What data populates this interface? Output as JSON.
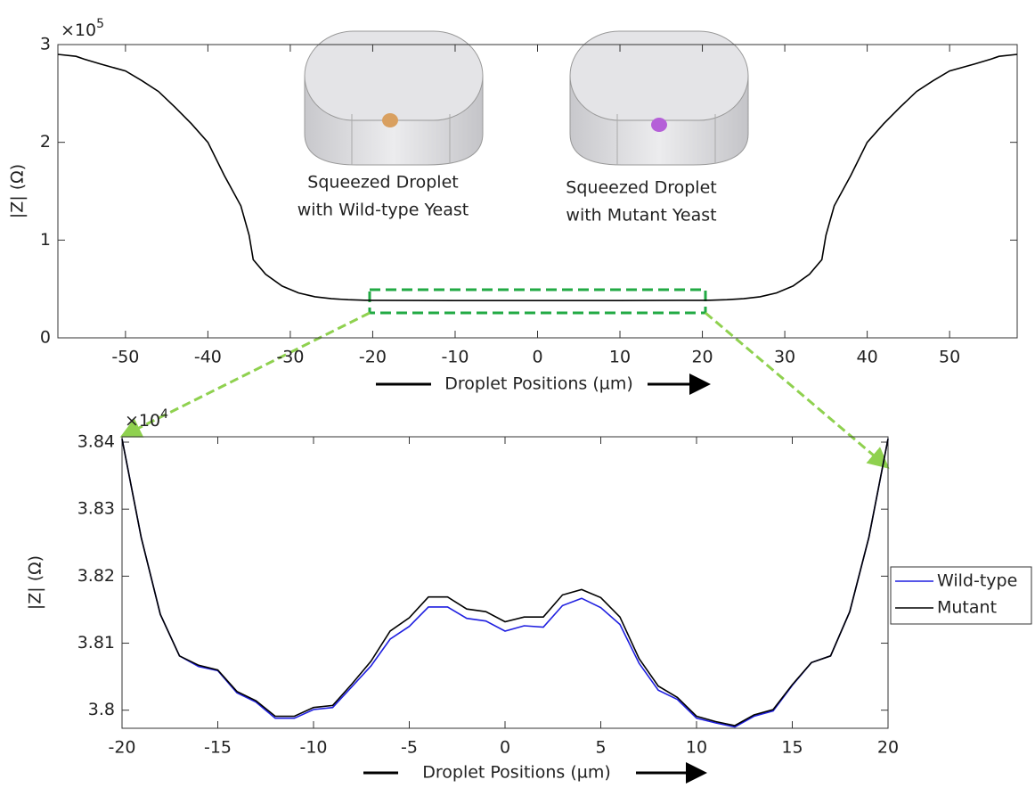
{
  "chart_data": [
    {
      "type": "line",
      "ylabel": "|Z| (Ω)",
      "xlabel": "Droplet Positions (µm)",
      "y_multiplier": "×10",
      "y_exponent": "5",
      "annotations": [
        [
          "Squeezed Droplet",
          "with Wild-type Yeast"
        ],
        [
          "Squeezed Droplet",
          "with Mutant Yeast"
        ]
      ],
      "xlim": [
        -58.2,
        58.2
      ],
      "ylim": [
        0,
        3
      ],
      "xticks": [
        -50,
        -40,
        -30,
        -20,
        -10,
        0,
        10,
        20,
        30,
        40,
        50
      ],
      "yticks": [
        0,
        1,
        2,
        3
      ],
      "x": [
        -58.2,
        -56,
        -55,
        -53,
        -50,
        -48,
        -46,
        -44,
        -42,
        -40,
        -38,
        -36,
        -35,
        -34.5,
        -33,
        -31,
        -29,
        -27,
        -25,
        -23,
        -21,
        -20,
        -10,
        0,
        10,
        20,
        21,
        23,
        25,
        27,
        29,
        31,
        33,
        34.5,
        35,
        36,
        38,
        40,
        42,
        44,
        46,
        48,
        50,
        53,
        55,
        56,
        58.2
      ],
      "series": [
        {
          "color": "#000000",
          "values": [
            2.9,
            2.88,
            2.85,
            2.8,
            2.73,
            2.63,
            2.52,
            2.36,
            2.19,
            2.0,
            1.66,
            1.35,
            1.05,
            0.8,
            0.65,
            0.53,
            0.46,
            0.42,
            0.4,
            0.39,
            0.385,
            0.384,
            0.381,
            0.381,
            0.381,
            0.384,
            0.385,
            0.39,
            0.4,
            0.42,
            0.46,
            0.53,
            0.65,
            0.8,
            1.05,
            1.35,
            1.66,
            2.0,
            2.19,
            2.36,
            2.52,
            2.63,
            2.73,
            2.8,
            2.85,
            2.88,
            2.9
          ]
        }
      ]
    },
    {
      "type": "line",
      "ylabel": "|Z| (Ω)",
      "xlabel": "Droplet Positions (µm)",
      "y_multiplier": "×10",
      "y_exponent": "4",
      "xlim": [
        -20,
        20
      ],
      "ylim": [
        3.7973,
        3.8408
      ],
      "xticks": [
        -20,
        -15,
        -10,
        -5,
        0,
        5,
        10,
        15,
        20
      ],
      "yticks": [
        3.8,
        3.81,
        3.82,
        3.83,
        3.84
      ],
      "legend": "right",
      "x": [
        -20,
        -19,
        -18,
        -17,
        -16,
        -15,
        -14,
        -13,
        -12,
        -11,
        -10,
        -9,
        -8,
        -7,
        -6,
        -5,
        -4,
        -3,
        -2,
        -1,
        0,
        1,
        2,
        3,
        4,
        5,
        6,
        7,
        8,
        9,
        10,
        11,
        12,
        13,
        14,
        15,
        16,
        17,
        18,
        19,
        20
      ],
      "series": [
        {
          "name": "Wild-type",
          "color": "#1f1fe0",
          "values": [
            3.8405,
            3.8258,
            3.8143,
            3.8081,
            3.8065,
            3.8059,
            3.8026,
            3.8012,
            3.7988,
            3.7988,
            3.8001,
            3.8004,
            3.8035,
            3.8066,
            3.8106,
            3.8125,
            3.8154,
            3.8154,
            3.8137,
            3.8133,
            3.8118,
            3.8126,
            3.8124,
            3.8156,
            3.8167,
            3.8153,
            3.8128,
            3.807,
            3.803,
            3.8016,
            3.7988,
            3.7981,
            3.7975,
            3.7991,
            3.7999,
            3.8037,
            3.8071,
            3.8081,
            3.8147,
            3.8258,
            3.8405
          ]
        },
        {
          "name": "Mutant",
          "color": "#000000",
          "values": [
            3.8405,
            3.8258,
            3.8143,
            3.8081,
            3.8067,
            3.806,
            3.8028,
            3.8014,
            3.7991,
            3.7991,
            3.8004,
            3.8007,
            3.8039,
            3.8073,
            3.8118,
            3.8138,
            3.8169,
            3.8169,
            3.8151,
            3.8147,
            3.8132,
            3.8139,
            3.8139,
            3.8172,
            3.818,
            3.8168,
            3.8139,
            3.8077,
            3.8036,
            3.8019,
            3.7991,
            3.7983,
            3.7977,
            3.7993,
            3.8001,
            3.8038,
            3.8071,
            3.8081,
            3.8147,
            3.8258,
            3.8405
          ]
        }
      ]
    }
  ]
}
